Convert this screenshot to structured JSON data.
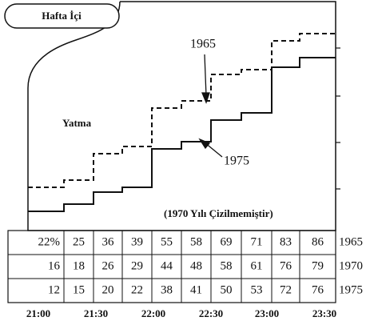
{
  "chart_data": {
    "type": "step",
    "title": "Hafta İçi",
    "annotations": {
      "left": "Yatma",
      "note": "(1970 Yılı Çizilmemiştir)",
      "arrow_1965": "1965",
      "arrow_1975": "1975"
    },
    "xticks": [
      "21:00",
      "21:30",
      "22:00",
      "22:30",
      "23:00",
      "23:30"
    ],
    "ylim": [
      0,
      100
    ],
    "series": [
      {
        "name": "1965",
        "style": "dashed",
        "values": [
          22,
          25,
          36,
          39,
          55,
          58,
          69,
          71,
          83,
          86
        ],
        "value_labels": [
          "22%",
          "25",
          "36",
          "39",
          "55",
          "58",
          "69",
          "71",
          "83",
          "86"
        ]
      },
      {
        "name": "1970",
        "style": "none",
        "values": [
          16,
          18,
          26,
          29,
          44,
          48,
          58,
          61,
          76,
          79
        ]
      },
      {
        "name": "1975",
        "style": "solid",
        "values": [
          12,
          15,
          20,
          22,
          38,
          41,
          50,
          53,
          72,
          76
        ]
      }
    ]
  }
}
